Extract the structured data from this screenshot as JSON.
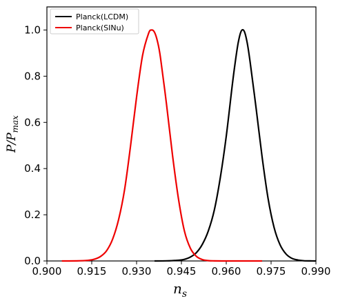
{
  "chart_data": {
    "type": "line",
    "xlabel_main": "n",
    "xlabel_sub": "s",
    "ylabel_main": "P/P",
    "ylabel_sub": "max",
    "xlim": [
      0.9,
      0.99
    ],
    "ylim": [
      0.0,
      1.1
    ],
    "x_ticks": [
      0.9,
      0.915,
      0.93,
      0.945,
      0.96,
      0.975,
      0.99
    ],
    "x_tick_labels": [
      "0.900",
      "0.915",
      "0.930",
      "0.945",
      "0.960",
      "0.975",
      "0.990"
    ],
    "y_ticks": [
      0.0,
      0.2,
      0.4,
      0.6,
      0.8,
      1.0
    ],
    "y_tick_labels": [
      "0.0",
      "0.2",
      "0.4",
      "0.6",
      "0.8",
      "1.0"
    ],
    "grid": false,
    "legend_position": "top-left",
    "series": [
      {
        "name": "Planck(LCDM)",
        "color": "#000000",
        "x": [
          0.936,
          0.94,
          0.944,
          0.946,
          0.948,
          0.95,
          0.952,
          0.954,
          0.956,
          0.958,
          0.96,
          0.962,
          0.963,
          0.964,
          0.965,
          0.966,
          0.967,
          0.968,
          0.97,
          0.972,
          0.974,
          0.976,
          0.978,
          0.98,
          0.982,
          0.984,
          0.986,
          0.988,
          0.99
        ],
        "y": [
          0.0,
          0.0005,
          0.003,
          0.007,
          0.017,
          0.036,
          0.072,
          0.13,
          0.22,
          0.36,
          0.54,
          0.76,
          0.86,
          0.945,
          0.995,
          0.995,
          0.945,
          0.86,
          0.66,
          0.45,
          0.27,
          0.145,
          0.07,
          0.03,
          0.011,
          0.004,
          0.001,
          0.0003,
          0.0
        ]
      },
      {
        "name": "Planck(SINu)",
        "color": "#ee0000",
        "x": [
          0.905,
          0.91,
          0.914,
          0.916,
          0.918,
          0.92,
          0.922,
          0.924,
          0.926,
          0.928,
          0.93,
          0.932,
          0.934,
          0.935,
          0.936,
          0.937,
          0.938,
          0.94,
          0.942,
          0.944,
          0.946,
          0.948,
          0.95,
          0.952,
          0.954,
          0.956,
          0.96,
          0.964,
          0.968,
          0.972
        ],
        "y": [
          0.0,
          0.0003,
          0.003,
          0.008,
          0.02,
          0.045,
          0.095,
          0.18,
          0.31,
          0.5,
          0.71,
          0.89,
          0.985,
          1.0,
          0.99,
          0.95,
          0.88,
          0.68,
          0.46,
          0.27,
          0.13,
          0.055,
          0.02,
          0.006,
          0.0015,
          0.0004,
          0.0,
          0.0,
          0.0,
          0.0
        ]
      }
    ]
  }
}
